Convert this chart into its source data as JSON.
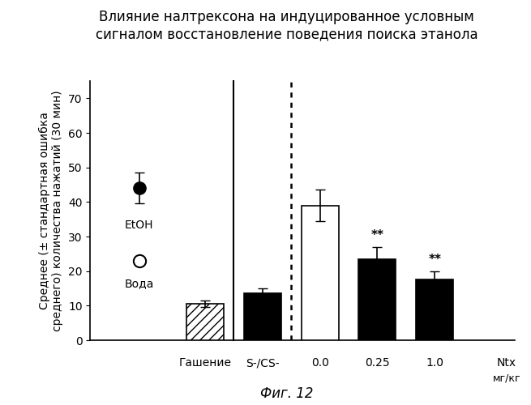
{
  "title_line1": "Влияние налтрексона на индуцированное условным",
  "title_line2": "сигналом восстановление поведения поиска этанола",
  "ylabel": "Среднее (± стандартная ошибка\nсреднего) количества нажатий (30 мин)",
  "xlabel_ntx": "Ntx",
  "xlabel_mgkg": "мг/кг",
  "fig_label": "Фиг. 12",
  "bar_labels": [
    "Гашение",
    "S-/CS-",
    "0.0",
    "0.25",
    "1.0"
  ],
  "bar_positions": [
    2,
    3,
    4,
    5,
    6
  ],
  "bar_values": [
    10.5,
    13.5,
    39.0,
    23.5,
    17.5
  ],
  "bar_errors": [
    1.0,
    1.5,
    4.5,
    3.5,
    2.5
  ],
  "bar_colors": [
    "hatch",
    "black",
    "white",
    "black",
    "black"
  ],
  "bar_hatches": [
    "///",
    "",
    "",
    "",
    ""
  ],
  "scatter_etoh_y": 44.0,
  "scatter_etoh_err": 4.5,
  "scatter_water_y": 23.0,
  "scatter_water_err": 2.5,
  "etoh_label": "EtOH",
  "water_label": "Вода",
  "ylim": [
    0,
    75
  ],
  "yticks": [
    0,
    10,
    20,
    30,
    40,
    50,
    60,
    70
  ],
  "significance_labels": [
    "",
    "",
    "",
    "**",
    "**"
  ],
  "vline_solid_x": 2.5,
  "vline_dotted_x": 3.5,
  "background_color": "#ffffff",
  "bar_edge_color": "#000000",
  "title_fontsize": 12,
  "label_fontsize": 10,
  "tick_fontsize": 10,
  "xlim_left": 0.0,
  "xlim_right": 7.4,
  "scatter_x_in_axes": 0.85
}
